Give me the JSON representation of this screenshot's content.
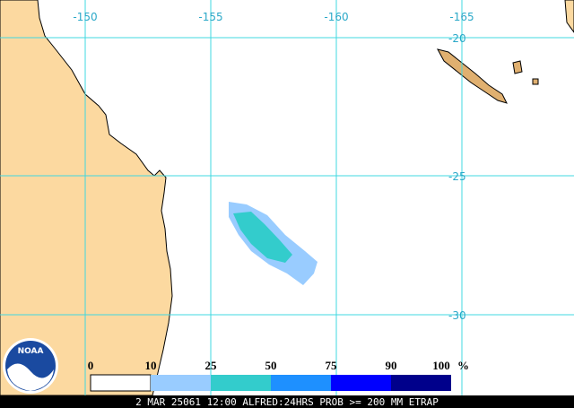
{
  "map": {
    "lon_labels": [
      "-150",
      "-155",
      "-160",
      "-165"
    ],
    "lat_labels": [
      "-20",
      "-25",
      "-30"
    ]
  },
  "legend": {
    "labels": [
      "0",
      "10",
      "25",
      "50",
      "75",
      "90",
      "100"
    ],
    "unit": "%"
  },
  "logo": "NOAA",
  "footer": "2 MAR 25061 12:00 ALFRED:24HRS PROB >= 200 MM ETRAP"
}
